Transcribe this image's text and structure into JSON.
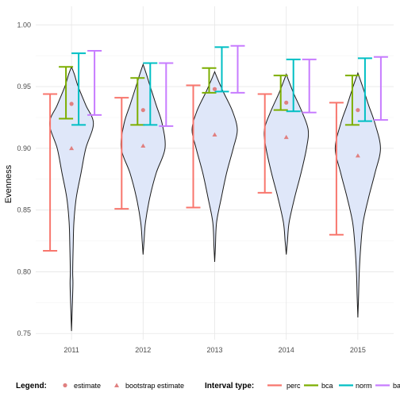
{
  "chart_data": {
    "type": "violin",
    "xlabel": "",
    "ylabel": "Evenness",
    "ylim": [
      0.745,
      1.015
    ],
    "yticks": [
      0.75,
      0.8,
      0.85,
      0.9,
      0.95,
      1.0
    ],
    "ytick_labels": [
      "0.75",
      "0.80",
      "0.85",
      "0.90",
      "0.95",
      "1.00"
    ],
    "categories": [
      "2011",
      "2012",
      "2013",
      "2014",
      "2015"
    ],
    "grid": true,
    "legend_position": "bottom",
    "colors": {
      "violin_fill": "#dfe7f9",
      "violin_stroke": "#1a1a1a",
      "estimate": "#e08080",
      "perc": "#f8766d",
      "bca": "#7cae00",
      "norm": "#00bfc4",
      "basic": "#c77cff"
    },
    "estimate": [
      0.936,
      0.931,
      0.948,
      0.937,
      0.931
    ],
    "bootstrap_estimate": [
      0.9,
      0.902,
      0.911,
      0.909,
      0.894
    ],
    "intervals": {
      "perc": [
        [
          0.817,
          0.944
        ],
        [
          0.851,
          0.941
        ],
        [
          0.852,
          0.951
        ],
        [
          0.864,
          0.944
        ],
        [
          0.83,
          0.937
        ]
      ],
      "bca": [
        [
          0.924,
          0.966
        ],
        [
          0.919,
          0.957
        ],
        [
          0.945,
          0.965
        ],
        [
          0.931,
          0.959
        ],
        [
          0.919,
          0.959
        ]
      ],
      "norm": [
        [
          0.919,
          0.977
        ],
        [
          0.919,
          0.969
        ],
        [
          0.946,
          0.982
        ],
        [
          0.93,
          0.972
        ],
        [
          0.922,
          0.973
        ]
      ],
      "basic": [
        [
          0.927,
          0.979
        ],
        [
          0.918,
          0.969
        ],
        [
          0.945,
          0.983
        ],
        [
          0.929,
          0.972
        ],
        [
          0.923,
          0.974
        ]
      ]
    },
    "violins": [
      {
        "min": 0.752,
        "max": 0.966,
        "profile": [
          [
            0.752,
            0
          ],
          [
            0.77,
            0.03
          ],
          [
            0.79,
            0.06
          ],
          [
            0.8,
            0.05
          ],
          [
            0.82,
            0.07
          ],
          [
            0.84,
            0.1
          ],
          [
            0.86,
            0.2
          ],
          [
            0.88,
            0.4
          ],
          [
            0.9,
            0.6
          ],
          [
            0.92,
            0.92
          ],
          [
            0.935,
            0.6
          ],
          [
            0.95,
            0.28
          ],
          [
            0.96,
            0.12
          ],
          [
            0.966,
            0
          ]
        ]
      },
      {
        "min": 0.814,
        "max": 0.968,
        "profile": [
          [
            0.814,
            0
          ],
          [
            0.825,
            0.04
          ],
          [
            0.84,
            0.1
          ],
          [
            0.86,
            0.28
          ],
          [
            0.88,
            0.55
          ],
          [
            0.9,
            0.92
          ],
          [
            0.92,
            0.8
          ],
          [
            0.935,
            0.55
          ],
          [
            0.95,
            0.3
          ],
          [
            0.96,
            0.14
          ],
          [
            0.968,
            0
          ]
        ]
      },
      {
        "min": 0.808,
        "max": 0.962,
        "profile": [
          [
            0.808,
            0
          ],
          [
            0.82,
            0.03
          ],
          [
            0.84,
            0.08
          ],
          [
            0.86,
            0.28
          ],
          [
            0.88,
            0.5
          ],
          [
            0.9,
            0.78
          ],
          [
            0.915,
            0.95
          ],
          [
            0.93,
            0.75
          ],
          [
            0.945,
            0.38
          ],
          [
            0.955,
            0.15
          ],
          [
            0.962,
            0
          ]
        ]
      },
      {
        "min": 0.814,
        "max": 0.96,
        "profile": [
          [
            0.814,
            0
          ],
          [
            0.825,
            0.05
          ],
          [
            0.84,
            0.12
          ],
          [
            0.86,
            0.35
          ],
          [
            0.88,
            0.62
          ],
          [
            0.9,
            0.85
          ],
          [
            0.915,
            0.92
          ],
          [
            0.93,
            0.65
          ],
          [
            0.945,
            0.3
          ],
          [
            0.96,
            0
          ]
        ]
      },
      {
        "min": 0.763,
        "max": 0.961,
        "profile": [
          [
            0.763,
            0
          ],
          [
            0.78,
            0.03
          ],
          [
            0.8,
            0.06
          ],
          [
            0.82,
            0.12
          ],
          [
            0.84,
            0.22
          ],
          [
            0.86,
            0.45
          ],
          [
            0.88,
            0.72
          ],
          [
            0.9,
            0.95
          ],
          [
            0.92,
            0.72
          ],
          [
            0.935,
            0.45
          ],
          [
            0.95,
            0.2
          ],
          [
            0.961,
            0
          ]
        ]
      }
    ]
  },
  "legend": {
    "title": "Legend:",
    "items": [
      {
        "label": "estimate",
        "shape": "circle"
      },
      {
        "label": "bootstrap estimate",
        "shape": "triangle"
      }
    ],
    "interval_title": "Interval type:",
    "interval_items": [
      {
        "label": "perc",
        "key": "perc"
      },
      {
        "label": "bca",
        "key": "bca"
      },
      {
        "label": "norm",
        "key": "norm"
      },
      {
        "label": "ba",
        "key": "basic"
      }
    ]
  }
}
